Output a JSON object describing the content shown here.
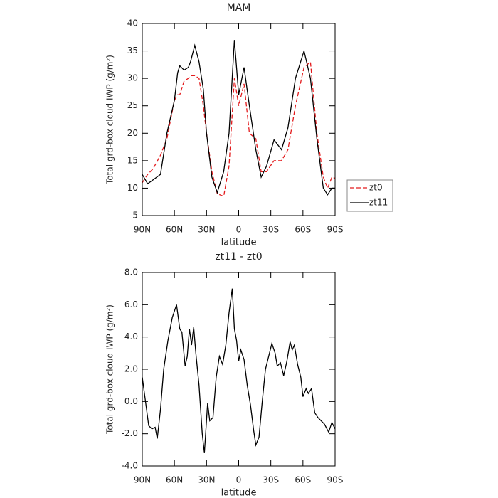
{
  "chart_data": [
    {
      "type": "line",
      "title": "MAM",
      "xlabel": "latitude",
      "ylabel": "Total grd-box cloud IWP (g/m²)",
      "x": [
        90,
        85,
        80,
        73,
        67,
        60,
        57,
        55,
        51,
        47,
        45,
        41,
        37,
        33,
        30,
        25,
        20,
        14,
        9,
        4,
        0,
        -5,
        -10,
        -16,
        -21,
        -26,
        -33,
        -40,
        -46,
        -53,
        -61,
        -67,
        -73,
        -79,
        -83,
        -87,
        -90
      ],
      "series": [
        {
          "name": "zt0",
          "color": "#e31a1c",
          "line_style": "dashed",
          "values": [
            11,
            12.5,
            13.5,
            16,
            19,
            26,
            27,
            27,
            29.5,
            30,
            30.5,
            30.5,
            30,
            25,
            20,
            13,
            9,
            8.5,
            14,
            30,
            25,
            29,
            20,
            19,
            13,
            13,
            15,
            15,
            17,
            25,
            32,
            33,
            20,
            12,
            10,
            12,
            11.8
          ]
        },
        {
          "name": "zt11",
          "color": "#000000",
          "line_style": "solid",
          "values": [
            12.5,
            10.8,
            11.5,
            12.5,
            20,
            26,
            31,
            32.3,
            31.5,
            32,
            33,
            36,
            33,
            28,
            20,
            12,
            9.2,
            13,
            20,
            37,
            27,
            32,
            25,
            17,
            12,
            14,
            18.8,
            17,
            21,
            30,
            35,
            30,
            19,
            10,
            8.8,
            10,
            10
          ]
        }
      ],
      "xlim": [
        90,
        -90
      ],
      "xticks": [
        {
          "value": 90,
          "label": "90N"
        },
        {
          "value": 60,
          "label": "60N"
        },
        {
          "value": 30,
          "label": "30N"
        },
        0,
        {
          "value": -30,
          "label": "30S"
        },
        {
          "value": -60,
          "label": "60S"
        },
        {
          "value": -90,
          "label": "90S"
        }
      ],
      "ylim": [
        5,
        40
      ],
      "yticks": [
        5,
        10,
        15,
        20,
        25,
        30,
        35,
        40
      ],
      "legend": "outside right",
      "grid": false
    },
    {
      "type": "line",
      "title": "zt11 - zt0",
      "xlabel": "latitude",
      "ylabel": "Total grd-box cloud IWP (g/m²)",
      "x": [
        90,
        87,
        84,
        81,
        78,
        76,
        73,
        70,
        66,
        62,
        58,
        55,
        53,
        50,
        48,
        46,
        44,
        42,
        40,
        37,
        34,
        32,
        29,
        27,
        24,
        21,
        18,
        15,
        12,
        9,
        6,
        4,
        2,
        0,
        -2,
        -5,
        -8,
        -11,
        -14,
        -16,
        -19,
        -22,
        -25,
        -28,
        -31,
        -34,
        -36,
        -39,
        -42,
        -45,
        -48,
        -50,
        -52,
        -55,
        -58,
        -60,
        -63,
        -65,
        -68,
        -71,
        -74,
        -77,
        -80,
        -84,
        -87,
        -90
      ],
      "series": [
        {
          "name": null,
          "color": "#000000",
          "line_style": "solid",
          "values": [
            1.5,
            0,
            -1.5,
            -1.7,
            -1.6,
            -2.3,
            -0.5,
            2,
            3.8,
            5.2,
            6.0,
            4.5,
            4.3,
            2.2,
            2.8,
            4.5,
            3.5,
            4.6,
            3,
            1,
            -2,
            -3.2,
            -0.1,
            -1.2,
            -1.0,
            1.5,
            2.8,
            2.3,
            3.5,
            5.5,
            7.0,
            4.5,
            3.8,
            2.5,
            3.2,
            2.6,
            1,
            -0.2,
            -1.8,
            -2.7,
            -2.2,
            0,
            2,
            2.8,
            3.6,
            3.0,
            2.2,
            2.4,
            1.6,
            2.5,
            3.7,
            3.2,
            3.5,
            2.3,
            1.5,
            0.3,
            0.8,
            0.5,
            0.8,
            -0.7,
            -1.0,
            -1.2,
            -1.4,
            -1.9,
            -1.3,
            -1.7
          ]
        }
      ],
      "xlim": [
        90,
        -90
      ],
      "xticks": [
        {
          "value": 90,
          "label": "90N"
        },
        {
          "value": 60,
          "label": "60N"
        },
        {
          "value": 30,
          "label": "30N"
        },
        0,
        {
          "value": -30,
          "label": "30S"
        },
        {
          "value": -60,
          "label": "60S"
        },
        {
          "value": -90,
          "label": "90S"
        }
      ],
      "ylim": [
        -4,
        8
      ],
      "yticks": [
        {
          "value": -4,
          "label": "-4.0"
        },
        {
          "value": -2,
          "label": "-2.0"
        },
        {
          "value": 0,
          "label": "0.0"
        },
        {
          "value": 2,
          "label": "2.0"
        },
        {
          "value": 4,
          "label": "4.0"
        },
        {
          "value": 6,
          "label": "6.0"
        },
        {
          "value": 8,
          "label": "8.0"
        }
      ],
      "grid": false
    }
  ]
}
